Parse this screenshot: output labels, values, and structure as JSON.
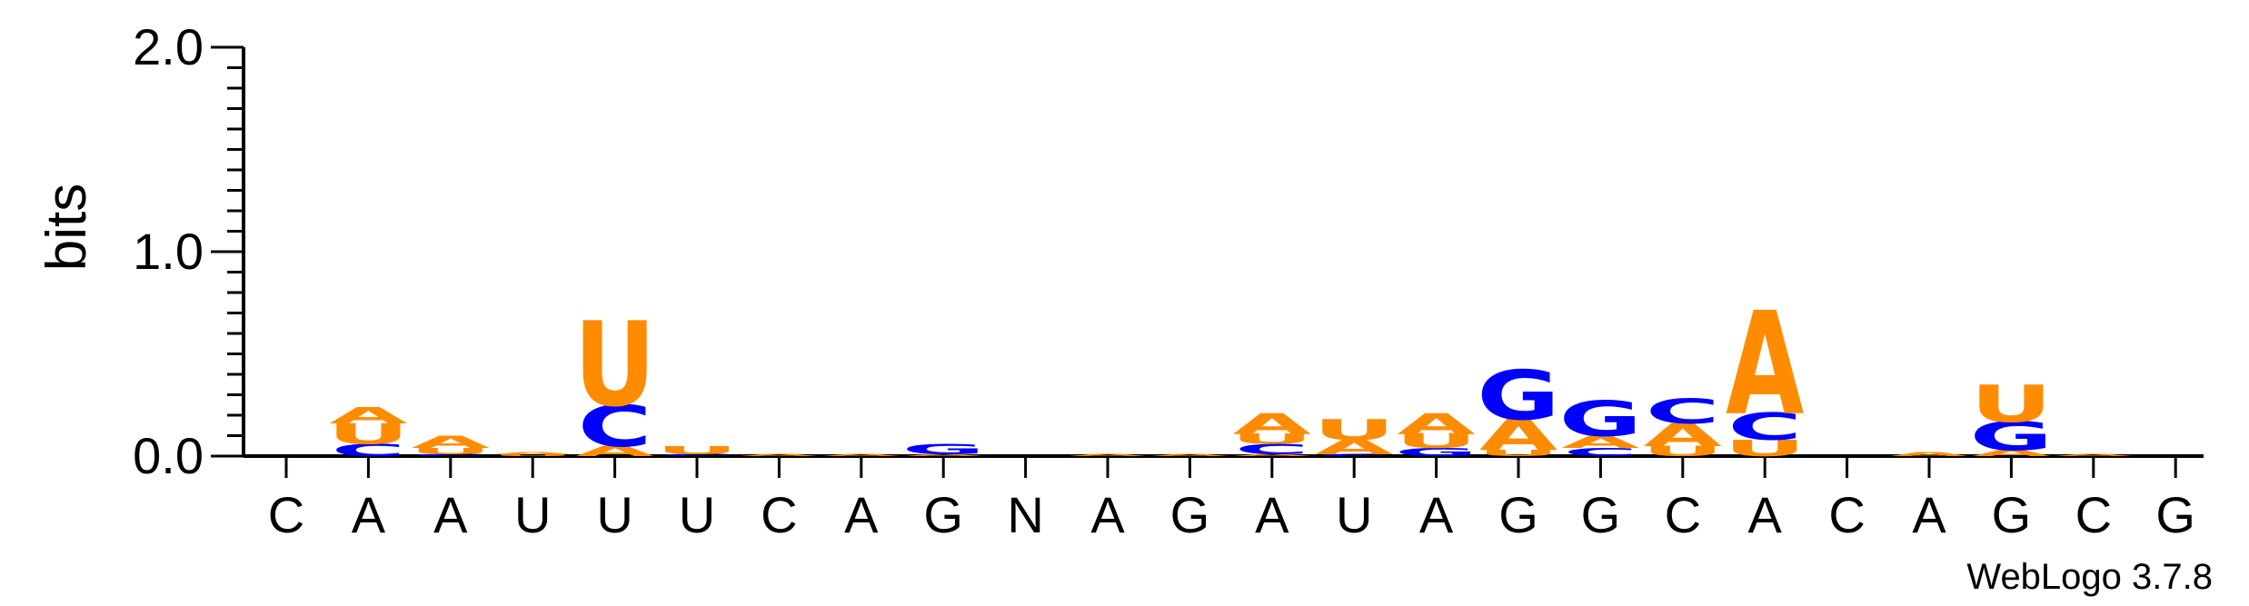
{
  "chart_data": {
    "type": "sequence-logo",
    "ylabel": "bits",
    "ylim": [
      0,
      2.0
    ],
    "yticks": [
      "0.0",
      "1.0",
      "2.0"
    ],
    "y_tick_values": [
      0.0,
      1.0,
      2.0
    ],
    "colors": {
      "A": "#FF8C00",
      "U": "#FF8C00",
      "C": "#0000FF",
      "G": "#0000FF"
    },
    "footer": "WebLogo 3.7.8",
    "positions": [
      {
        "label": "C",
        "stack": []
      },
      {
        "label": "A",
        "stack": [
          {
            "letter": "C",
            "height": 0.06
          },
          {
            "letter": "U",
            "height": 0.1
          },
          {
            "letter": "A",
            "height": 0.08
          }
        ]
      },
      {
        "label": "A",
        "stack": [
          {
            "letter": "C",
            "height": 0.01
          },
          {
            "letter": "U",
            "height": 0.03
          },
          {
            "letter": "A",
            "height": 0.06
          }
        ]
      },
      {
        "label": "U",
        "stack": [
          {
            "letter": "U",
            "height": 0.01
          },
          {
            "letter": "A",
            "height": 0.01
          }
        ]
      },
      {
        "label": "U",
        "stack": [
          {
            "letter": "A",
            "height": 0.05
          },
          {
            "letter": "C",
            "height": 0.2
          },
          {
            "letter": "U",
            "height": 0.41
          }
        ]
      },
      {
        "label": "U",
        "stack": [
          {
            "letter": "C",
            "height": 0.01
          },
          {
            "letter": "U",
            "height": 0.04
          }
        ]
      },
      {
        "label": "C",
        "stack": [
          {
            "letter": "A",
            "height": 0.01
          }
        ]
      },
      {
        "label": "A",
        "stack": [
          {
            "letter": "A",
            "height": 0.01
          }
        ]
      },
      {
        "label": "G",
        "stack": [
          {
            "letter": "A",
            "height": 0.01
          },
          {
            "letter": "G",
            "height": 0.05
          }
        ]
      },
      {
        "label": "N",
        "stack": []
      },
      {
        "label": "A",
        "stack": [
          {
            "letter": "A",
            "height": 0.01
          }
        ]
      },
      {
        "label": "G",
        "stack": [
          {
            "letter": "A",
            "height": 0.01
          }
        ]
      },
      {
        "label": "A",
        "stack": [
          {
            "letter": "A",
            "height": 0.01
          },
          {
            "letter": "C",
            "height": 0.05
          },
          {
            "letter": "U",
            "height": 0.05
          },
          {
            "letter": "A",
            "height": 0.1
          }
        ]
      },
      {
        "label": "U",
        "stack": [
          {
            "letter": "C",
            "height": 0.01
          },
          {
            "letter": "A",
            "height": 0.07
          },
          {
            "letter": "U",
            "height": 0.1
          }
        ]
      },
      {
        "label": "A",
        "stack": [
          {
            "letter": "G",
            "height": 0.04
          },
          {
            "letter": "U",
            "height": 0.07
          },
          {
            "letter": "A",
            "height": 0.1
          }
        ]
      },
      {
        "label": "G",
        "stack": [
          {
            "letter": "U",
            "height": 0.03
          },
          {
            "letter": "A",
            "height": 0.15
          },
          {
            "letter": "G",
            "height": 0.24
          }
        ]
      },
      {
        "label": "G",
        "stack": [
          {
            "letter": "C",
            "height": 0.04
          },
          {
            "letter": "A",
            "height": 0.06
          },
          {
            "letter": "G",
            "height": 0.17
          }
        ]
      },
      {
        "label": "C",
        "stack": [
          {
            "letter": "U",
            "height": 0.05
          },
          {
            "letter": "A",
            "height": 0.11
          },
          {
            "letter": "C",
            "height": 0.12
          }
        ]
      },
      {
        "label": "A",
        "stack": [
          {
            "letter": "U",
            "height": 0.08
          },
          {
            "letter": "C",
            "height": 0.13
          },
          {
            "letter": "A",
            "height": 0.5
          }
        ]
      },
      {
        "label": "C",
        "stack": []
      },
      {
        "label": "A",
        "stack": [
          {
            "letter": "A",
            "height": 0.02
          }
        ]
      },
      {
        "label": "G",
        "stack": [
          {
            "letter": "A",
            "height": 0.03
          },
          {
            "letter": "G",
            "height": 0.14
          },
          {
            "letter": "U",
            "height": 0.18
          }
        ]
      },
      {
        "label": "C",
        "stack": [
          {
            "letter": "A",
            "height": 0.01
          }
        ]
      },
      {
        "label": "G",
        "stack": []
      }
    ]
  }
}
